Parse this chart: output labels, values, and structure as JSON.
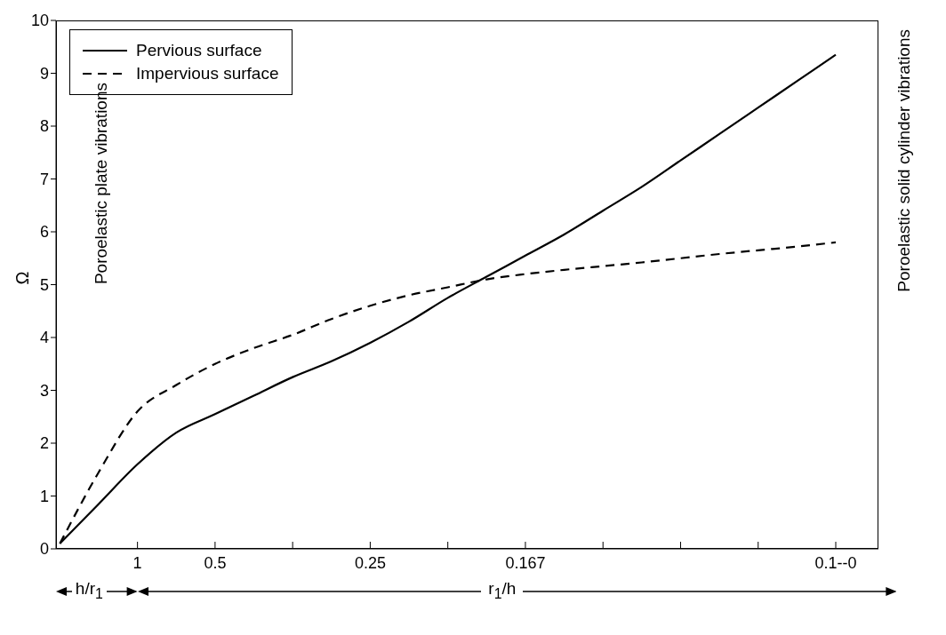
{
  "chart_data": {
    "type": "line",
    "ylabel": "Ω",
    "legend": "top left",
    "ylim": [
      0,
      10
    ],
    "yticks": [
      0,
      1,
      2,
      3,
      4,
      5,
      6,
      7,
      8,
      9,
      10
    ],
    "categories": [
      null,
      null,
      "1",
      null,
      "0.5",
      null,
      null,
      null,
      "0.25",
      null,
      null,
      null,
      "0.167",
      null,
      null,
      null,
      null,
      null,
      null,
      null,
      "0.1--0"
    ],
    "series": [
      {
        "name": "Pervious surface",
        "color": "#000000",
        "line_style": "solid",
        "values": [
          0.1,
          0.85,
          1.6,
          2.2,
          2.55,
          2.9,
          3.25,
          3.55,
          3.9,
          4.3,
          4.75,
          5.15,
          5.55,
          5.95,
          6.4,
          6.85,
          7.35,
          7.85,
          8.35,
          8.85,
          9.35
        ]
      },
      {
        "name": "Impervious surface",
        "color": "#000000",
        "line_style": "dashed",
        "values": [
          0.1,
          1.45,
          2.6,
          3.1,
          3.5,
          3.8,
          4.05,
          4.35,
          4.6,
          4.8,
          4.95,
          5.1,
          5.2,
          5.28,
          5.35,
          5.42,
          5.5,
          5.58,
          5.65,
          5.72,
          5.8
        ]
      }
    ],
    "annotations": [
      "Poroelastic plate vibrations",
      "Poroelastic solid cylinder vibrations",
      "h/r$_{1}$",
      "r$_{1}$/h"
    ]
  }
}
